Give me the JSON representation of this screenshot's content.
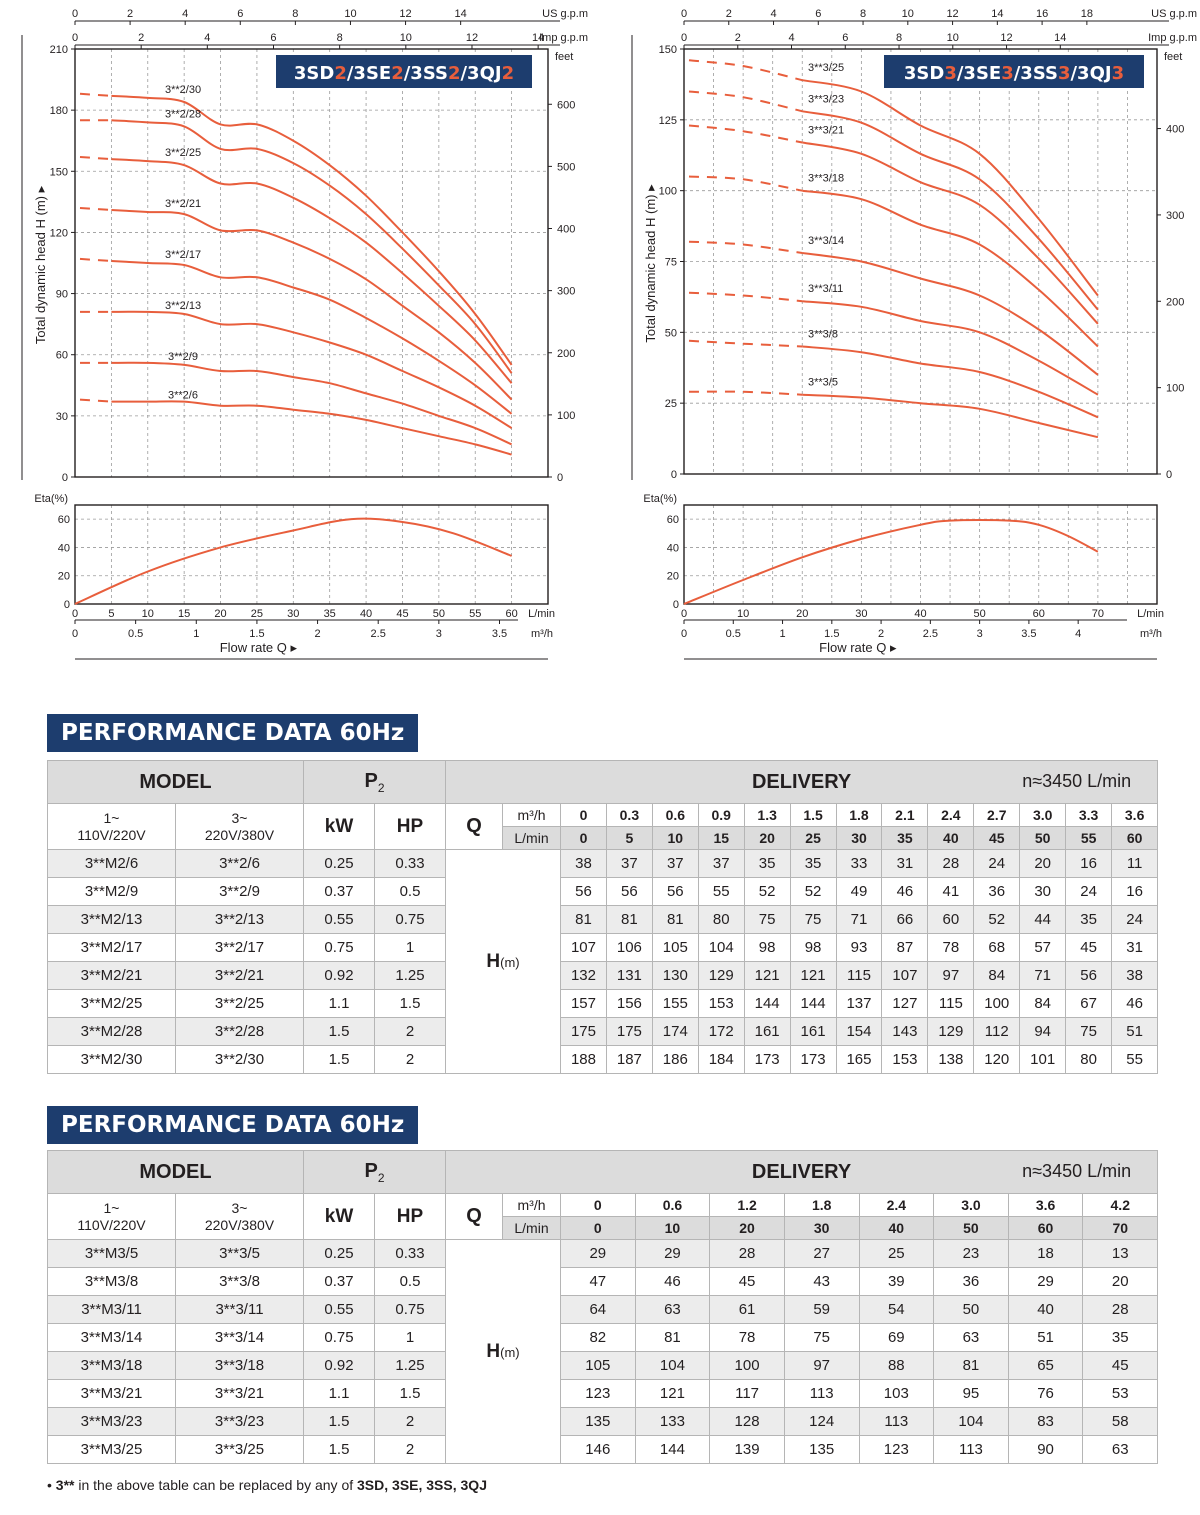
{
  "chart_data": [
    {
      "type": "line",
      "title": "3SD2/3SE2/3SS2/3QJ2",
      "title_parts": [
        [
          "3SD",
          "2"
        ],
        [
          "/3SE",
          "2"
        ],
        [
          "/3SS",
          "2"
        ],
        [
          "/3QJ",
          "2"
        ]
      ],
      "ylabel": "Total dynamic head H (m)",
      "ylim": [
        0,
        210
      ],
      "yticks": [
        0,
        30,
        60,
        90,
        120,
        150,
        180,
        210
      ],
      "y2label": "feet",
      "y2ticks": [
        0,
        100,
        200,
        300,
        400,
        500,
        600
      ],
      "xlim_lmin": [
        0,
        65
      ],
      "top_axes": [
        {
          "label": "US g.p.m",
          "ticks": [
            0,
            2,
            4,
            6,
            8,
            10,
            12,
            14
          ]
        },
        {
          "label": "Imp g.p.m",
          "ticks": [
            0,
            2,
            4,
            6,
            8,
            10,
            12,
            14
          ]
        }
      ],
      "dashed_until_lmin": 5,
      "x": [
        0,
        5,
        10,
        15,
        20,
        25,
        30,
        35,
        40,
        45,
        50,
        55,
        60
      ],
      "series": [
        {
          "name": "3**2/30",
          "values": [
            188,
            187,
            186,
            184,
            173,
            173,
            165,
            153,
            138,
            120,
            101,
            80,
            55
          ]
        },
        {
          "name": "3**2/28",
          "values": [
            175,
            175,
            174,
            172,
            161,
            161,
            154,
            143,
            129,
            112,
            94,
            75,
            51
          ]
        },
        {
          "name": "3**2/25",
          "values": [
            157,
            156,
            155,
            153,
            144,
            144,
            137,
            127,
            115,
            100,
            84,
            67,
            46
          ]
        },
        {
          "name": "3**2/21",
          "values": [
            132,
            131,
            130,
            129,
            121,
            121,
            115,
            107,
            97,
            84,
            71,
            56,
            38
          ]
        },
        {
          "name": "3**2/17",
          "values": [
            107,
            106,
            105,
            104,
            98,
            98,
            93,
            87,
            78,
            68,
            57,
            45,
            31
          ]
        },
        {
          "name": "3**2/13",
          "values": [
            81,
            81,
            81,
            80,
            75,
            75,
            71,
            66,
            60,
            52,
            44,
            35,
            24
          ]
        },
        {
          "name": "3**2/9",
          "values": [
            56,
            56,
            56,
            55,
            52,
            52,
            49,
            46,
            41,
            36,
            30,
            24,
            16
          ]
        },
        {
          "name": "3**2/6",
          "values": [
            38,
            37,
            37,
            37,
            35,
            35,
            33,
            31,
            28,
            24,
            20,
            16,
            11
          ]
        }
      ],
      "eta": {
        "label": "Eta(%)",
        "ylim": [
          0,
          70
        ],
        "yticks": [
          0,
          20,
          40,
          60
        ],
        "x": [
          0,
          10,
          20,
          30,
          38,
          45,
          52,
          60
        ],
        "values": [
          0,
          23,
          40,
          52,
          60,
          58,
          50,
          34
        ]
      },
      "x_lmin": {
        "label": "L/min",
        "ticks": [
          0,
          5,
          10,
          15,
          20,
          25,
          30,
          35,
          40,
          45,
          50,
          55,
          60
        ]
      },
      "x_m3h": {
        "label": "m³/h",
        "ticks": [
          0,
          0.5,
          1,
          1.5,
          2,
          2.5,
          3,
          3.5
        ]
      },
      "xlabel": "Flow rate   Q"
    },
    {
      "type": "line",
      "title": "3SD3/3SE3/3SS3/3QJ3",
      "title_parts": [
        [
          "3SD",
          "3"
        ],
        [
          "/3SE",
          "3"
        ],
        [
          "/3SS",
          "3"
        ],
        [
          "/3QJ",
          "3"
        ]
      ],
      "ylabel": "Total dynamic head H (m)",
      "ylim": [
        0,
        150
      ],
      "yticks": [
        0,
        25,
        50,
        75,
        100,
        125,
        150
      ],
      "y2label": "feet",
      "y2ticks": [
        0,
        100,
        200,
        300,
        400
      ],
      "xlim_lmin": [
        0,
        80
      ],
      "top_axes": [
        {
          "label": "US g.p.m",
          "ticks": [
            0,
            2,
            4,
            6,
            8,
            10,
            12,
            14,
            16,
            18
          ]
        },
        {
          "label": "Imp g.p.m",
          "ticks": [
            0,
            2,
            4,
            6,
            8,
            10,
            12,
            14
          ]
        }
      ],
      "dashed_until_lmin": 20,
      "x": [
        0,
        10,
        20,
        30,
        40,
        50,
        60,
        70
      ],
      "series": [
        {
          "name": "3**3/25",
          "values": [
            146,
            144,
            139,
            135,
            123,
            113,
            90,
            63
          ]
        },
        {
          "name": "3**3/23",
          "values": [
            135,
            133,
            128,
            124,
            113,
            104,
            83,
            58
          ]
        },
        {
          "name": "3**3/21",
          "values": [
            123,
            121,
            117,
            113,
            103,
            95,
            76,
            53
          ]
        },
        {
          "name": "3**3/18",
          "values": [
            105,
            104,
            100,
            97,
            88,
            81,
            65,
            45
          ]
        },
        {
          "name": "3**3/14",
          "values": [
            82,
            81,
            78,
            75,
            69,
            63,
            51,
            35
          ]
        },
        {
          "name": "3**3/11",
          "values": [
            64,
            63,
            61,
            59,
            54,
            50,
            40,
            28
          ]
        },
        {
          "name": "3**3/8",
          "values": [
            47,
            46,
            45,
            43,
            39,
            36,
            29,
            20
          ]
        },
        {
          "name": "3**3/5",
          "values": [
            29,
            29,
            28,
            27,
            25,
            23,
            18,
            13
          ]
        }
      ],
      "eta": {
        "label": "Eta(%)",
        "ylim": [
          0,
          70
        ],
        "yticks": [
          0,
          20,
          40,
          60
        ],
        "x": [
          0,
          10,
          20,
          30,
          40,
          45,
          55,
          60,
          65,
          70
        ],
        "values": [
          0,
          17,
          33,
          46,
          56,
          59,
          59,
          56,
          48,
          37
        ]
      },
      "x_lmin": {
        "label": "L/min",
        "ticks": [
          0,
          10,
          20,
          30,
          40,
          50,
          60,
          70
        ]
      },
      "x_m3h": {
        "label": "m³/h",
        "ticks": [
          0,
          0.5,
          1,
          1.5,
          2,
          2.5,
          3,
          3.5,
          4
        ]
      },
      "xlabel": "Flow rate   Q"
    }
  ],
  "tables": [
    {
      "title": "PERFORMANCE DATA 60Hz",
      "model_header": "MODEL",
      "p2_header": "P",
      "p2_sub": "2",
      "delivery_header": "DELIVERY",
      "rpm": "n≈3450 L/min",
      "col_1ph": [
        "1~",
        "110V/220V"
      ],
      "col_3ph": [
        "3~",
        "220V/380V"
      ],
      "kw": "kW",
      "hp": "HP",
      "q": "Q",
      "unit_m3h": "m³/h",
      "unit_lmin": "L/min",
      "q_m3h": [
        "0",
        "0.3",
        "0.6",
        "0.9",
        "1.3",
        "1.5",
        "1.8",
        "2.1",
        "2.4",
        "2.7",
        "3.0",
        "3.3",
        "3.6"
      ],
      "q_lmin": [
        "0",
        "5",
        "10",
        "15",
        "20",
        "25",
        "30",
        "35",
        "40",
        "45",
        "50",
        "55",
        "60"
      ],
      "h_label": "H",
      "h_unit": "(m)",
      "rows": [
        {
          "m1": "3**M2/6",
          "m3": "3**2/6",
          "kw": "0.25",
          "hp": "0.33",
          "h": [
            38,
            37,
            37,
            37,
            35,
            35,
            33,
            31,
            28,
            24,
            20,
            16,
            11
          ]
        },
        {
          "m1": "3**M2/9",
          "m3": "3**2/9",
          "kw": "0.37",
          "hp": "0.5",
          "h": [
            56,
            56,
            56,
            55,
            52,
            52,
            49,
            46,
            41,
            36,
            30,
            24,
            16
          ]
        },
        {
          "m1": "3**M2/13",
          "m3": "3**2/13",
          "kw": "0.55",
          "hp": "0.75",
          "h": [
            81,
            81,
            81,
            80,
            75,
            75,
            71,
            66,
            60,
            52,
            44,
            35,
            24
          ]
        },
        {
          "m1": "3**M2/17",
          "m3": "3**2/17",
          "kw": "0.75",
          "hp": "1",
          "h": [
            107,
            106,
            105,
            104,
            98,
            98,
            93,
            87,
            78,
            68,
            57,
            45,
            31
          ]
        },
        {
          "m1": "3**M2/21",
          "m3": "3**2/21",
          "kw": "0.92",
          "hp": "1.25",
          "h": [
            132,
            131,
            130,
            129,
            121,
            121,
            115,
            107,
            97,
            84,
            71,
            56,
            38
          ]
        },
        {
          "m1": "3**M2/25",
          "m3": "3**2/25",
          "kw": "1.1",
          "hp": "1.5",
          "h": [
            157,
            156,
            155,
            153,
            144,
            144,
            137,
            127,
            115,
            100,
            84,
            67,
            46
          ]
        },
        {
          "m1": "3**M2/28",
          "m3": "3**2/28",
          "kw": "1.5",
          "hp": "2",
          "h": [
            175,
            175,
            174,
            172,
            161,
            161,
            154,
            143,
            129,
            112,
            94,
            75,
            51
          ]
        },
        {
          "m1": "3**M2/30",
          "m3": "3**2/30",
          "kw": "1.5",
          "hp": "2",
          "h": [
            188,
            187,
            186,
            184,
            173,
            173,
            165,
            153,
            138,
            120,
            101,
            80,
            55
          ]
        }
      ]
    },
    {
      "title": "PERFORMANCE DATA 60Hz",
      "model_header": "MODEL",
      "p2_header": "P",
      "p2_sub": "2",
      "delivery_header": "DELIVERY",
      "rpm": "n≈3450 L/min",
      "col_1ph": [
        "1~",
        "110V/220V"
      ],
      "col_3ph": [
        "3~",
        "220V/380V"
      ],
      "kw": "kW",
      "hp": "HP",
      "q": "Q",
      "unit_m3h": "m³/h",
      "unit_lmin": "L/min",
      "q_m3h": [
        "0",
        "0.6",
        "1.2",
        "1.8",
        "2.4",
        "3.0",
        "3.6",
        "4.2"
      ],
      "q_lmin": [
        "0",
        "10",
        "20",
        "30",
        "40",
        "50",
        "60",
        "70"
      ],
      "h_label": "H",
      "h_unit": "(m)",
      "rows": [
        {
          "m1": "3**M3/5",
          "m3": "3**3/5",
          "kw": "0.25",
          "hp": "0.33",
          "h": [
            29,
            29,
            28,
            27,
            25,
            23,
            18,
            13
          ]
        },
        {
          "m1": "3**M3/8",
          "m3": "3**3/8",
          "kw": "0.37",
          "hp": "0.5",
          "h": [
            47,
            46,
            45,
            43,
            39,
            36,
            29,
            20
          ]
        },
        {
          "m1": "3**M3/11",
          "m3": "3**3/11",
          "kw": "0.55",
          "hp": "0.75",
          "h": [
            64,
            63,
            61,
            59,
            54,
            50,
            40,
            28
          ]
        },
        {
          "m1": "3**M3/14",
          "m3": "3**3/14",
          "kw": "0.75",
          "hp": "1",
          "h": [
            82,
            81,
            78,
            75,
            69,
            63,
            51,
            35
          ]
        },
        {
          "m1": "3**M3/18",
          "m3": "3**3/18",
          "kw": "0.92",
          "hp": "1.25",
          "h": [
            105,
            104,
            100,
            97,
            88,
            81,
            65,
            45
          ]
        },
        {
          "m1": "3**M3/21",
          "m3": "3**3/21",
          "kw": "1.1",
          "hp": "1.5",
          "h": [
            123,
            121,
            117,
            113,
            103,
            95,
            76,
            53
          ]
        },
        {
          "m1": "3**M3/23",
          "m3": "3**3/23",
          "kw": "1.5",
          "hp": "2",
          "h": [
            135,
            133,
            128,
            124,
            113,
            104,
            83,
            58
          ]
        },
        {
          "m1": "3**M3/25",
          "m3": "3**3/25",
          "kw": "1.5",
          "hp": "2",
          "h": [
            146,
            144,
            139,
            135,
            123,
            113,
            90,
            63
          ]
        }
      ]
    }
  ],
  "footnote": {
    "bullet": "•",
    "prefix": "3**",
    "text": " in the above table can be replaced by any of ",
    "models": "3SD, 3SE, 3SS, 3QJ"
  },
  "colors": {
    "curve": "#e85e3c",
    "navy": "#1d3d6e",
    "accent": "#e85e3c"
  }
}
